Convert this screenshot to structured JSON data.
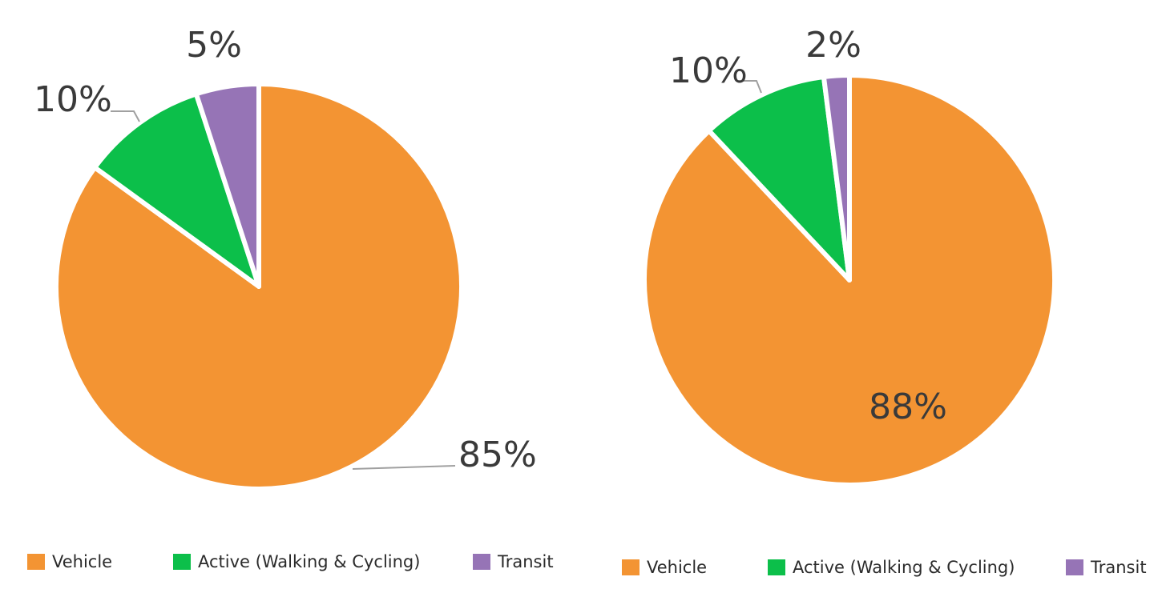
{
  "chart_data": [
    {
      "type": "pie",
      "title": "",
      "start_angle_deg": 0,
      "direction": "clockwise",
      "slices": [
        {
          "label": "Vehicle",
          "value": 85,
          "display": "85%",
          "color": "#F39433"
        },
        {
          "label": "Active (Walking & Cycling)",
          "value": 10,
          "display": "10%",
          "color": "#0CBF4A"
        },
        {
          "label": "Transit",
          "value": 5,
          "display": "5%",
          "color": "#9674B6"
        }
      ],
      "legend": {
        "position": "bottom",
        "items": [
          "Vehicle",
          "Active (Walking & Cycling)",
          "Transit"
        ]
      }
    },
    {
      "type": "pie",
      "title": "",
      "start_angle_deg": 0,
      "direction": "clockwise",
      "slices": [
        {
          "label": "Vehicle",
          "value": 88,
          "display": "88%",
          "color": "#F39433"
        },
        {
          "label": "Active (Walking & Cycling)",
          "value": 10,
          "display": "10%",
          "color": "#0CBF4A"
        },
        {
          "label": "Transit",
          "value": 2,
          "display": "2%",
          "color": "#9674B6"
        }
      ],
      "legend": {
        "position": "bottom",
        "items": [
          "Vehicle",
          "Active (Walking & Cycling)",
          "Transit"
        ]
      }
    }
  ]
}
